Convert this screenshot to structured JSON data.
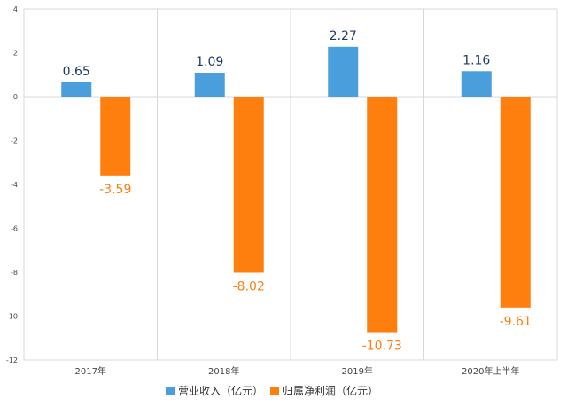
{
  "chart_data": {
    "type": "bar",
    "categories": [
      "2017年",
      "2018年",
      "2019年",
      "2020年上半年"
    ],
    "series": [
      {
        "name": "营业收入（亿元）",
        "values": [
          0.65,
          1.09,
          2.27,
          1.16
        ],
        "color": "#4A9EDB",
        "label_color": "#1F3A63"
      },
      {
        "name": "归属净利润（亿元）",
        "values": [
          -3.59,
          -8.02,
          -10.73,
          -9.61
        ],
        "color": "#FF7F0E",
        "label_color": "#FF7F0E"
      }
    ],
    "data_labels": [
      [
        "0.65",
        "1.09",
        "2.27",
        "1.16"
      ],
      [
        "-3.59",
        "-8.02",
        "-10.73",
        "-9.61"
      ]
    ],
    "yticks": [
      "4",
      "2",
      "0",
      "-2",
      "-4",
      "-6",
      "-8",
      "-10",
      "-12"
    ],
    "ylim": [
      -12,
      4
    ],
    "grid": "vertical category separators",
    "legend_position": "bottom-center"
  }
}
